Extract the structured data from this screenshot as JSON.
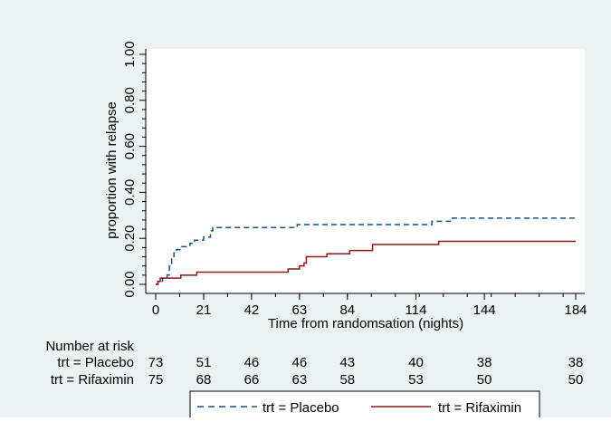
{
  "colors": {
    "background": "#eaf2f3",
    "plot_background": "#ffffff",
    "placebo": "#1a4d80",
    "rifaximin": "#8b1a1a"
  },
  "chart_data": {
    "type": "line",
    "title": "",
    "xlabel": "Time from randomsation (nights)",
    "ylabel": "proportion with relapse",
    "xlim": [
      0,
      184
    ],
    "ylim": [
      0,
      1
    ],
    "xticks": [
      "0",
      "21",
      "42",
      "63",
      "84",
      "114",
      "144",
      "184"
    ],
    "yticks": [
      "0.00",
      "0.20",
      "0.40",
      "0.60",
      "0.80",
      "1.00"
    ],
    "grid": false,
    "legend": {
      "position": "bottom"
    },
    "series": [
      {
        "name": "trt = Placebo",
        "style": "dashed",
        "color": "#1a4d80",
        "steps": [
          [
            0,
            0
          ],
          [
            1,
            0.014
          ],
          [
            3,
            0.027
          ],
          [
            5,
            0.041
          ],
          [
            6,
            0.082
          ],
          [
            7,
            0.11
          ],
          [
            8,
            0.137
          ],
          [
            9,
            0.151
          ],
          [
            11,
            0.164
          ],
          [
            15,
            0.178
          ],
          [
            17,
            0.192
          ],
          [
            21,
            0.205
          ],
          [
            24,
            0.233
          ],
          [
            25,
            0.247
          ],
          [
            62,
            0.26
          ],
          [
            121,
            0.274
          ],
          [
            130,
            0.288
          ],
          [
            184,
            0.288
          ]
        ]
      },
      {
        "name": "trt = Rifaximin",
        "style": "solid",
        "color": "#8b1a1a",
        "steps": [
          [
            0,
            0
          ],
          [
            1,
            0.013
          ],
          [
            2,
            0.027
          ],
          [
            11,
            0.04
          ],
          [
            17,
            0.04
          ],
          [
            18,
            0.053
          ],
          [
            21,
            0.053
          ],
          [
            22,
            0.053
          ],
          [
            58,
            0.067
          ],
          [
            63,
            0.08
          ],
          [
            65,
            0.093
          ],
          [
            66,
            0.12
          ],
          [
            70,
            0.12
          ],
          [
            75,
            0.133
          ],
          [
            85,
            0.147
          ],
          [
            95,
            0.173
          ],
          [
            124,
            0.187
          ],
          [
            184,
            0.187
          ]
        ]
      }
    ]
  },
  "risk_table": {
    "title": "Number at risk",
    "rows": [
      {
        "label": "trt = Placebo",
        "values": [
          "73",
          "51",
          "46",
          "46",
          "43",
          "40",
          "38",
          "38"
        ]
      },
      {
        "label": "trt = Rifaximin",
        "values": [
          "75",
          "68",
          "66",
          "63",
          "58",
          "53",
          "50",
          "50"
        ]
      }
    ]
  }
}
